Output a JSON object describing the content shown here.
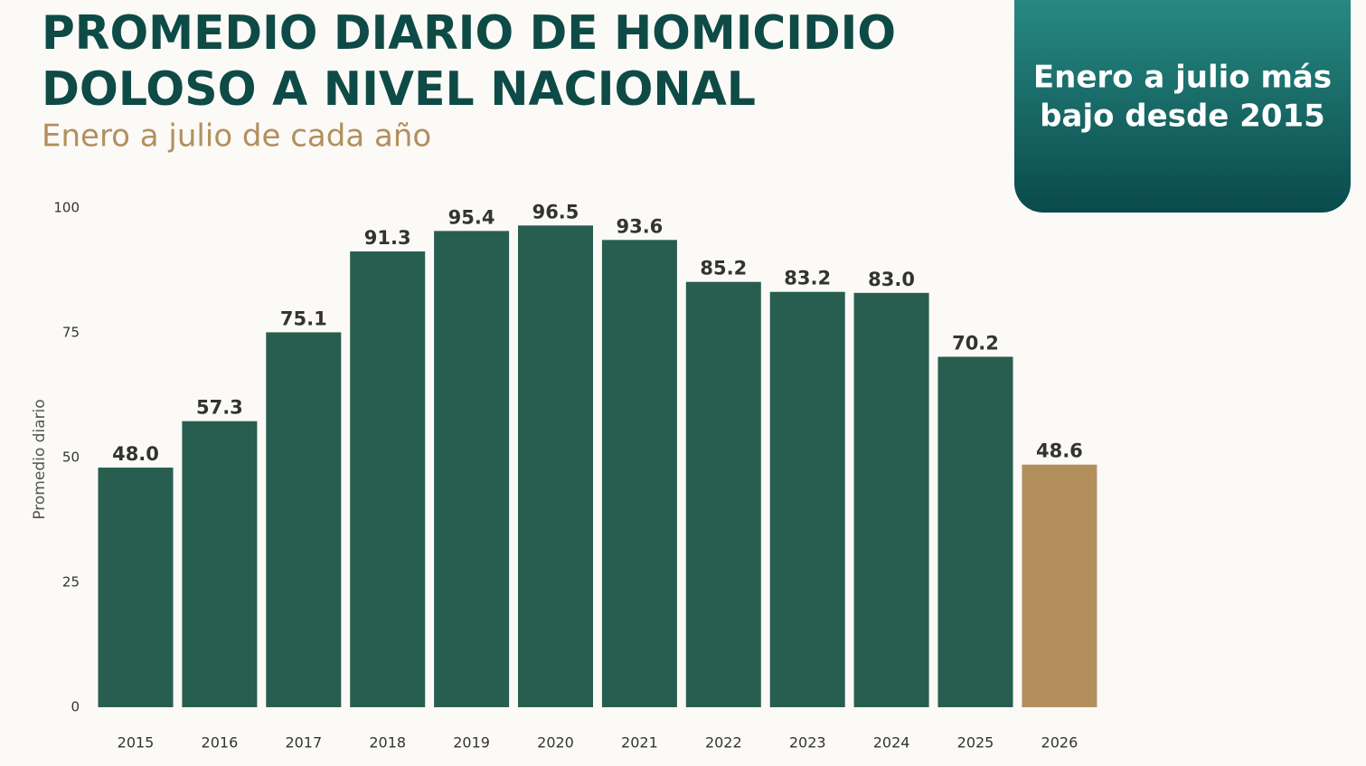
{
  "chart_data": {
    "type": "bar",
    "title": [
      "PROMEDIO DIARIO DE HOMICIDIO",
      "DOLOSO A NIVEL NACIONAL"
    ],
    "subtitle": "Enero a julio de cada año",
    "annotation": [
      "Enero a julio más",
      "bajo desde 2015"
    ],
    "ylabel": "Promedio diario",
    "categories": [
      "2015",
      "2016",
      "2017",
      "2018",
      "2019",
      "2020",
      "2021",
      "2022",
      "2023",
      "2024",
      "2025",
      "2026"
    ],
    "values": [
      48,
      57.3,
      75.1,
      91.3,
      95.4,
      96.5,
      93.6,
      85.2,
      83.2,
      83,
      70.2,
      48.6
    ],
    "value_labels": [
      "48.0",
      "57.3",
      "75.1",
      "91.3",
      "95.4",
      "96.5",
      "93.6",
      "85.2",
      "83.2",
      "83.0",
      "70.2",
      "48.6"
    ],
    "colors": [
      "#285e4f",
      "#285e4f",
      "#285e4f",
      "#285e4f",
      "#285e4f",
      "#285e4f",
      "#285e4f",
      "#285e4f",
      "#285e4f",
      "#285e4f",
      "#285e4f",
      "#b38f5e"
    ],
    "ylim": [
      0,
      100
    ],
    "yticks": [
      0,
      25,
      50,
      75,
      100
    ],
    "grid": false
  }
}
